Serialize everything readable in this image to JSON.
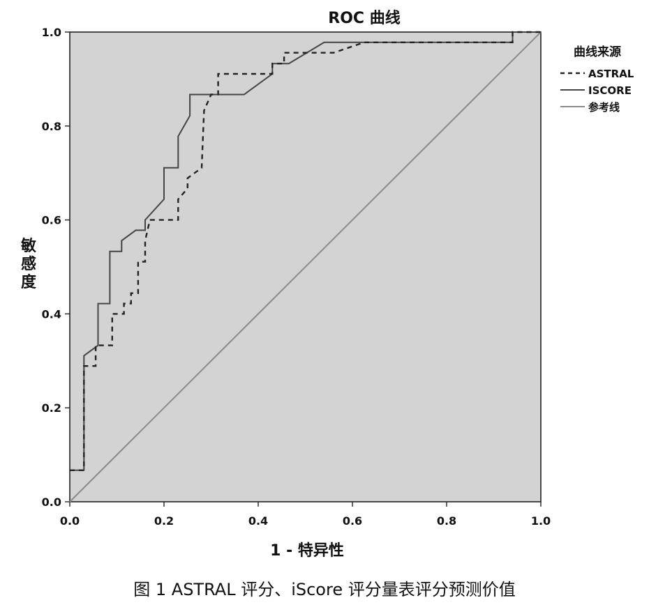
{
  "chart_data": {
    "type": "line",
    "title": "ROC 曲线",
    "xlabel": "1 - 特异性",
    "ylabel": "敏感度",
    "xlim": [
      0,
      1
    ],
    "ylim": [
      0,
      1
    ],
    "xticks": [
      "0.0",
      "0.2",
      "0.4",
      "0.6",
      "0.8",
      "1.0"
    ],
    "yticks": [
      "0.0",
      "0.2",
      "0.4",
      "0.6",
      "0.8",
      "1.0"
    ],
    "grid": false,
    "background_color": "#d3d3d3",
    "legend": {
      "title": "曲线来源",
      "position": "right",
      "entries": [
        "ASTRAL",
        "ISCORE",
        "参考线"
      ]
    },
    "series": [
      {
        "name": "ASTRAL",
        "style": "dashed",
        "color": "#222222",
        "points": [
          [
            0,
            0.067
          ],
          [
            0.03,
            0.067
          ],
          [
            0.03,
            0.289
          ],
          [
            0.055,
            0.289
          ],
          [
            0.055,
            0.333
          ],
          [
            0.09,
            0.333
          ],
          [
            0.09,
            0.4
          ],
          [
            0.115,
            0.4
          ],
          [
            0.115,
            0.422
          ],
          [
            0.13,
            0.422
          ],
          [
            0.13,
            0.444
          ],
          [
            0.145,
            0.444
          ],
          [
            0.145,
            0.511
          ],
          [
            0.16,
            0.511
          ],
          [
            0.16,
            0.556
          ],
          [
            0.17,
            0.6
          ],
          [
            0.23,
            0.6
          ],
          [
            0.23,
            0.644
          ],
          [
            0.25,
            0.667
          ],
          [
            0.25,
            0.689
          ],
          [
            0.28,
            0.711
          ],
          [
            0.285,
            0.833
          ],
          [
            0.3,
            0.867
          ],
          [
            0.315,
            0.867
          ],
          [
            0.315,
            0.911
          ],
          [
            0.43,
            0.911
          ],
          [
            0.43,
            0.933
          ],
          [
            0.455,
            0.933
          ],
          [
            0.455,
            0.956
          ],
          [
            0.56,
            0.956
          ],
          [
            0.56,
            0.956
          ],
          [
            0.625,
            0.978
          ],
          [
            0.94,
            0.978
          ],
          [
            0.94,
            1.0
          ],
          [
            1.0,
            1.0
          ]
        ]
      },
      {
        "name": "ISCORE",
        "style": "solid",
        "color": "#444444",
        "points": [
          [
            0,
            0.067
          ],
          [
            0.03,
            0.067
          ],
          [
            0.03,
            0.311
          ],
          [
            0.06,
            0.333
          ],
          [
            0.06,
            0.422
          ],
          [
            0.085,
            0.422
          ],
          [
            0.085,
            0.533
          ],
          [
            0.11,
            0.533
          ],
          [
            0.11,
            0.556
          ],
          [
            0.14,
            0.578
          ],
          [
            0.16,
            0.578
          ],
          [
            0.16,
            0.6
          ],
          [
            0.2,
            0.644
          ],
          [
            0.2,
            0.711
          ],
          [
            0.23,
            0.711
          ],
          [
            0.23,
            0.778
          ],
          [
            0.255,
            0.822
          ],
          [
            0.255,
            0.867
          ],
          [
            0.37,
            0.867
          ],
          [
            0.43,
            0.911
          ],
          [
            0.43,
            0.933
          ],
          [
            0.465,
            0.933
          ],
          [
            0.54,
            0.978
          ],
          [
            0.64,
            0.978
          ],
          [
            0.94,
            0.978
          ],
          [
            0.94,
            1.0
          ],
          [
            1.0,
            1.0
          ]
        ]
      },
      {
        "name": "参考线",
        "style": "solid",
        "color": "#8a8a8a",
        "points": [
          [
            0,
            0
          ],
          [
            1,
            1
          ]
        ]
      }
    ]
  },
  "caption": "图 1  ASTRAL 评分、iScore 评分量表评分预测价值"
}
